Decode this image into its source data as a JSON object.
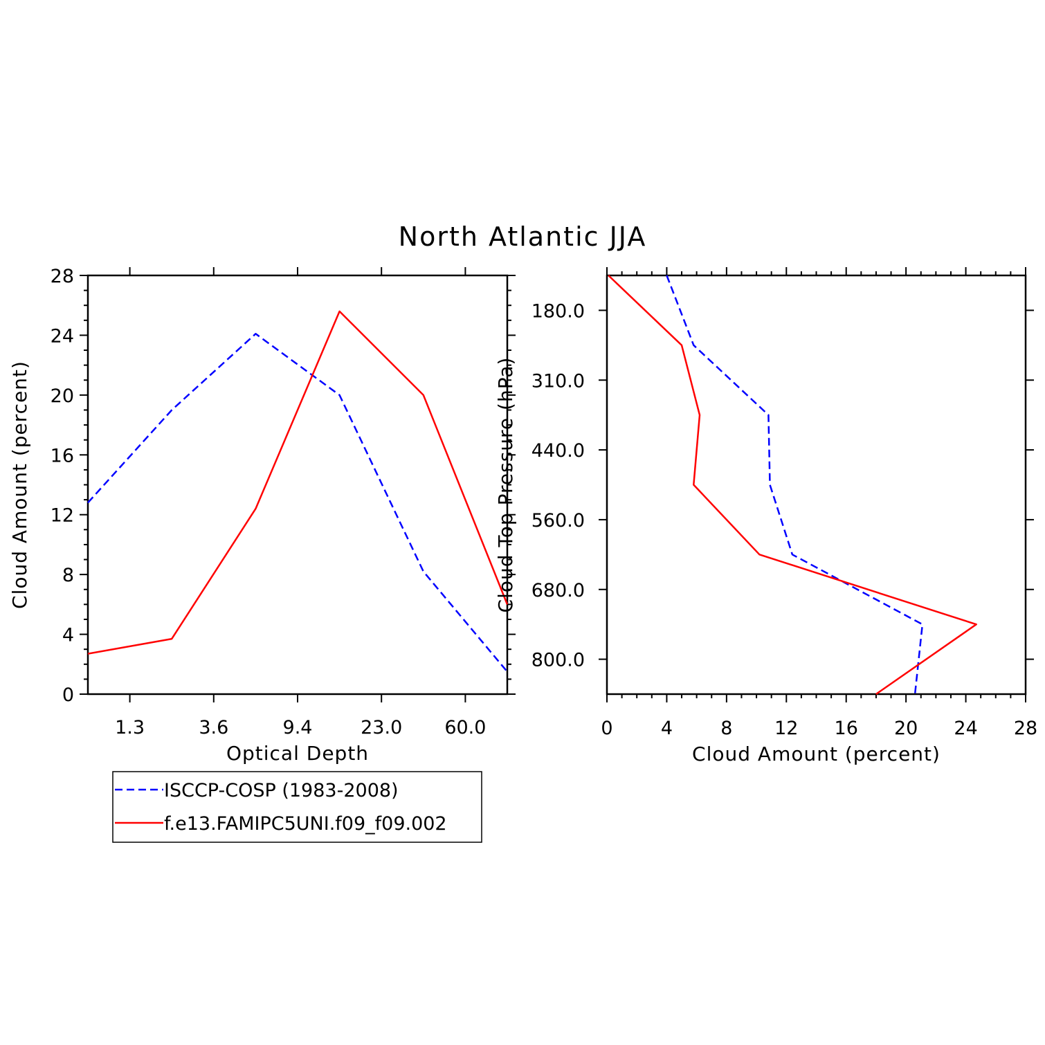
{
  "title": "North Atlantic JJA",
  "chart_data": [
    {
      "type": "line",
      "xlabel": "Optical Depth",
      "ylabel": "Cloud Amount (percent)",
      "x_tick_labels": [
        "1.3",
        "3.6",
        "9.4",
        "23.0",
        "60.0"
      ],
      "y_ticks": [
        0,
        4,
        8,
        12,
        16,
        20,
        24,
        28
      ],
      "ylim": [
        0,
        28
      ],
      "grid": false,
      "series": [
        {
          "name": "ISCCP-COSP (1983-2008)",
          "color": "#0000ff",
          "style": "dashed",
          "values": [
            12.8,
            19.0,
            24.1,
            20.0,
            8.2,
            1.5
          ]
        },
        {
          "name": "f.e13.FAMIPC5UNI.f09_f09.002",
          "color": "#ff0000",
          "style": "solid",
          "values": [
            2.7,
            3.7,
            12.4,
            25.6,
            20.0,
            6.0
          ]
        }
      ]
    },
    {
      "type": "line",
      "xlabel": "Cloud Amount (percent)",
      "ylabel": "Cloud Top Pressure (hPa)",
      "x_ticks": [
        0,
        4,
        8,
        12,
        16,
        20,
        24,
        28
      ],
      "xlim": [
        0,
        28
      ],
      "y_tick_labels": [
        "180.0",
        "310.0",
        "440.0",
        "560.0",
        "680.0",
        "800.0"
      ],
      "grid": false,
      "series": [
        {
          "name": "ISCCP-COSP (1983-2008)",
          "color": "#0000ff",
          "style": "dashed",
          "values": [
            4.0,
            5.8,
            10.8,
            10.9,
            12.4,
            21.1,
            20.6
          ]
        },
        {
          "name": "f.e13.FAMIPC5UNI.f09_f09.002",
          "color": "#ff0000",
          "style": "solid",
          "values": [
            0.1,
            5.0,
            6.2,
            5.8,
            10.2,
            24.7,
            18.0
          ]
        }
      ]
    }
  ],
  "legend": {
    "items": [
      {
        "label": "ISCCP-COSP (1983-2008)",
        "color": "#0000ff",
        "style": "dashed"
      },
      {
        "label": "f.e13.FAMIPC5UNI.f09_f09.002",
        "color": "#ff0000",
        "style": "solid"
      }
    ]
  }
}
